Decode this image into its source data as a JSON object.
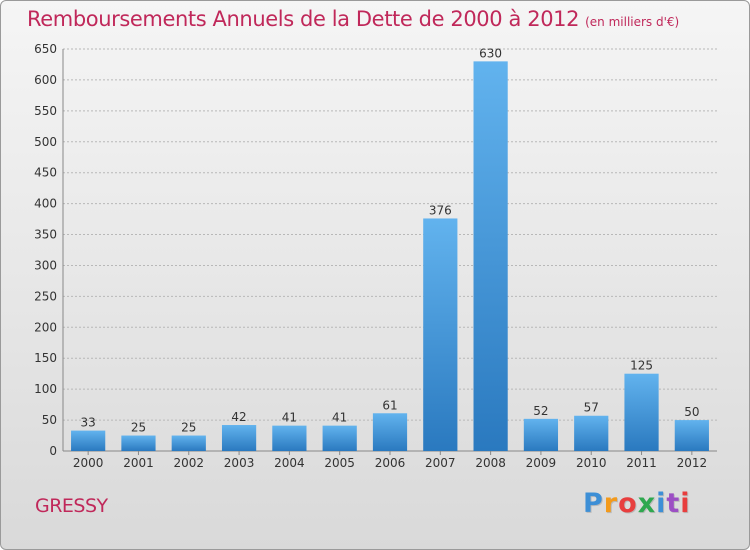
{
  "title": "Remboursements Annuels de la Dette de 2000 à 2012",
  "unit_note": "(en milliers d'€)",
  "commune": "GRESSY",
  "logo": {
    "letters": [
      "P",
      "r",
      "o",
      "x",
      "i",
      "t",
      "i"
    ],
    "colors": [
      "#3d8fd6",
      "#f39a1b",
      "#e83e3e",
      "#2fa84f",
      "#3d8fd6",
      "#9c4fc4",
      "#e83e3e"
    ]
  },
  "colors": {
    "title": "#c0285a",
    "bar_top": "#62b3ee",
    "bar_bottom": "#2a79bf",
    "grid": "#b8b8b8"
  },
  "chart_data": {
    "type": "bar",
    "title": "Remboursements Annuels de la Dette de 2000 à 2012",
    "categories": [
      "2000",
      "2001",
      "2002",
      "2003",
      "2004",
      "2005",
      "2006",
      "2007",
      "2008",
      "2009",
      "2010",
      "2011",
      "2012"
    ],
    "values": [
      33,
      25,
      25,
      42,
      41,
      41,
      61,
      376,
      630,
      52,
      57,
      125,
      50
    ],
    "ylim": [
      0,
      650
    ],
    "yticks": [
      0,
      50,
      100,
      150,
      200,
      250,
      300,
      350,
      400,
      450,
      500,
      550,
      600,
      650
    ],
    "grid": true,
    "legend": "none"
  }
}
